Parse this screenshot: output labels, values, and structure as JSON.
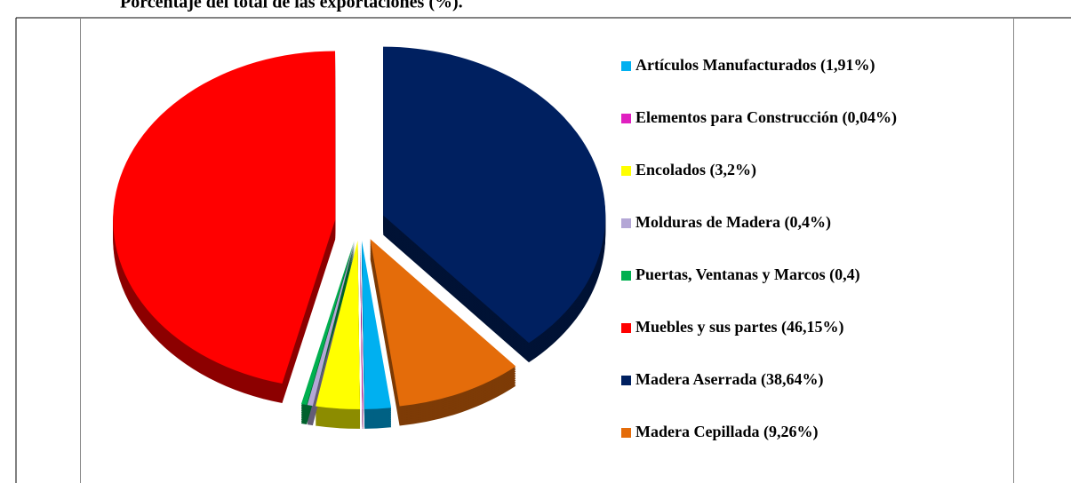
{
  "chart_data": {
    "type": "pie",
    "title": "Porcentaje del total de las exportaciones (%).",
    "categories": [
      "Artículos Manufacturados (1,91%)",
      "Elementos para Construcción (0,04%)",
      "Encolados (3,2%)",
      "Molduras de Madera (0,4%)",
      "Puertas, Ventanas y Marcos (0,4)",
      "Muebles y sus partes (46,15%)",
      "Madera Aserrada (38,64%)",
      "Madera Cepillada (9,26%)"
    ],
    "values": [
      1.91,
      0.04,
      3.2,
      0.4,
      0.4,
      46.15,
      38.64,
      9.26
    ],
    "colors": [
      "#00b0f0",
      "#e020c0",
      "#ffff00",
      "#b4a7d6",
      "#00b050",
      "#ff0000",
      "#002060",
      "#e46c0a"
    ],
    "legend": "right"
  }
}
